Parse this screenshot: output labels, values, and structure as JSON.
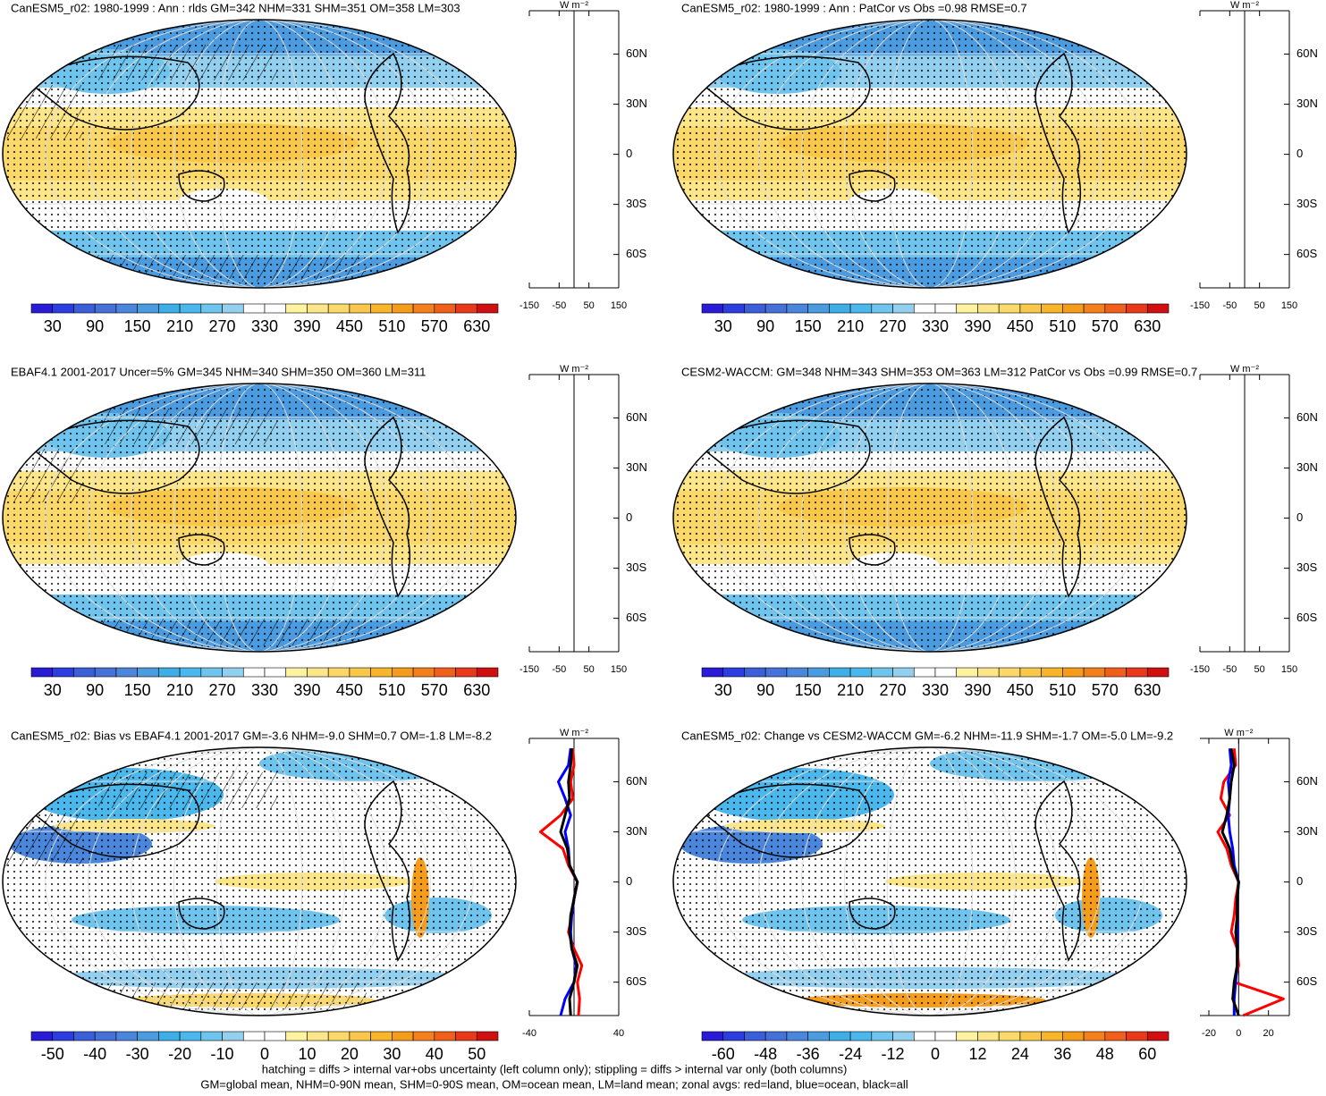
{
  "colorbar_colors": [
    "#2a1bd6",
    "#2d3ee0",
    "#3b5fd8",
    "#4571d8",
    "#4a86dc",
    "#4a9be0",
    "#3eaee6",
    "#4ab8ec",
    "#6fc4ee",
    "#93d0f0",
    "#ffffff",
    "#ffffff",
    "#fff3a0",
    "#fde68a",
    "#fbd86a",
    "#f9c84a",
    "#f7b52a",
    "#f59d1a",
    "#f3801a",
    "#f0601a",
    "#e83a1a",
    "#d01010"
  ],
  "panels": [
    {
      "title": "CanESM5_r02: 1980-1999 : Ann : rlds GM=342 NHM=331 SHM=351 OM=358 LM=303",
      "colorbar": [
        30,
        90,
        150,
        210,
        270,
        330,
        390,
        450,
        510,
        570,
        630
      ],
      "zonal": {
        "units": "W m⁻²",
        "xlim": [
          -150,
          150
        ],
        "xticks": [
          -150,
          -50,
          50,
          150
        ],
        "ylim": [
          -80,
          86
        ],
        "yticks": [
          {
            "value": 60,
            "label": "60N"
          },
          {
            "value": 30,
            "label": "30N"
          },
          0,
          {
            "value": -30,
            "label": "30S"
          },
          {
            "value": -60,
            "label": "60S"
          }
        ]
      }
    },
    {
      "title": "CanESM5_r02: 1980-1999 : Ann : PatCor vs Obs =0.98 RMSE=0.7",
      "colorbar": [
        30,
        90,
        150,
        210,
        270,
        330,
        390,
        450,
        510,
        570,
        630
      ],
      "zonal": {
        "units": "W m⁻²",
        "xlim": [
          -150,
          150
        ],
        "xticks": [
          -150,
          -50,
          50,
          150
        ],
        "ylim": [
          -80,
          86
        ],
        "yticks": [
          {
            "value": 60,
            "label": "60N"
          },
          {
            "value": 30,
            "label": "30N"
          },
          0,
          {
            "value": -30,
            "label": "30S"
          },
          {
            "value": -60,
            "label": "60S"
          }
        ]
      }
    },
    {
      "title": "EBAF4.1 2001-2017 Uncer=5% GM=345 NHM=340 SHM=350 OM=360 LM=311",
      "colorbar": [
        30,
        90,
        150,
        210,
        270,
        330,
        390,
        450,
        510,
        570,
        630
      ],
      "zonal": {
        "units": "W m⁻²",
        "xlim": [
          -150,
          150
        ],
        "xticks": [
          -150,
          -50,
          50,
          150
        ],
        "ylim": [
          -80,
          86
        ],
        "yticks": [
          {
            "value": 60,
            "label": "60N"
          },
          {
            "value": 30,
            "label": "30N"
          },
          0,
          {
            "value": -30,
            "label": "30S"
          },
          {
            "value": -60,
            "label": "60S"
          }
        ]
      }
    },
    {
      "title": "CESM2-WACCM: GM=348 NHM=343 SHM=353 OM=363 LM=312 PatCor vs Obs =0.99 RMSE=0.7",
      "colorbar": [
        30,
        90,
        150,
        210,
        270,
        330,
        390,
        450,
        510,
        570,
        630
      ],
      "zonal": {
        "units": "W m⁻²",
        "xlim": [
          -150,
          150
        ],
        "xticks": [
          -150,
          -50,
          50,
          150
        ],
        "ylim": [
          -80,
          86
        ],
        "yticks": [
          {
            "value": 60,
            "label": "60N"
          },
          {
            "value": 30,
            "label": "30N"
          },
          0,
          {
            "value": -30,
            "label": "30S"
          },
          {
            "value": -60,
            "label": "60S"
          }
        ]
      }
    },
    {
      "title": "CanESM5_r02: Bias vs EBAF4.1 2001-2017 GM=-3.6 NHM=-9.0 SHM=0.7 OM=-1.8 LM=-8.2",
      "colorbar": [
        -50,
        -40,
        -30,
        -20,
        -10,
        0,
        10,
        20,
        30,
        40,
        50
      ],
      "zonal": {
        "units": "W m⁻²",
        "xlim": [
          -40,
          40
        ],
        "xticks": [
          -40,
          40
        ],
        "ylim": [
          -80,
          86
        ],
        "yticks": [
          {
            "value": 60,
            "label": "60N"
          },
          {
            "value": 30,
            "label": "30N"
          },
          0,
          {
            "value": -30,
            "label": "30S"
          },
          {
            "value": -60,
            "label": "60S"
          }
        ],
        "lats": [
          80,
          70,
          60,
          50,
          40,
          30,
          20,
          10,
          0,
          -10,
          -20,
          -30,
          -40,
          -50,
          -60,
          -70,
          -80
        ],
        "series": [
          {
            "color": "#ff0000",
            "values": [
              -1,
              0,
              -3,
              -1,
              -12,
              -30,
              -10,
              -5,
              3,
              0,
              -2,
              -5,
              0,
              7,
              3,
              5,
              4
            ]
          },
          {
            "color": "#0000ff",
            "values": [
              -3,
              -5,
              -14,
              -8,
              -3,
              -8,
              -5,
              -4,
              3,
              0,
              -2,
              -3,
              -2,
              2,
              0,
              -8,
              -12
            ]
          },
          {
            "color": "#000000",
            "values": [
              -2,
              -3,
              -5,
              -4,
              -8,
              -12,
              -6,
              -4,
              3,
              0,
              -3,
              -4,
              -2,
              3,
              0,
              -4,
              -3
            ]
          }
        ]
      }
    },
    {
      "title": "CanESM5_r02: Change vs CESM2-WACCM GM=-6.2 NHM=-11.9 SHM=-1.7 OM=-5.0 LM=-9.2",
      "colorbar": [
        -60,
        -48,
        -36,
        -24,
        -12,
        0,
        12,
        24,
        36,
        48,
        60
      ],
      "zonal": {
        "units": "W m⁻²",
        "xlim": [
          -26,
          34
        ],
        "xticks": [
          -20,
          0,
          20
        ],
        "ylim": [
          -80,
          86
        ],
        "yticks": [
          {
            "value": 60,
            "label": "60N"
          },
          {
            "value": 30,
            "label": "30N"
          },
          0,
          {
            "value": -30,
            "label": "30S"
          },
          {
            "value": -60,
            "label": "60S"
          }
        ],
        "lats": [
          80,
          70,
          60,
          50,
          40,
          30,
          20,
          10,
          0,
          -10,
          -20,
          -30,
          -40,
          -50,
          -60,
          -70,
          -80
        ],
        "series": [
          {
            "color": "#ff0000",
            "values": [
              -3,
              -2,
              -10,
              -12,
              -6,
              -14,
              -8,
              -5,
              0,
              -2,
              -3,
              -5,
              -1,
              0,
              -3,
              30,
              3
            ]
          },
          {
            "color": "#0000ff",
            "values": [
              -6,
              -5,
              -7,
              -6,
              -7,
              -6,
              -4,
              -3,
              0,
              -1,
              -1,
              -1,
              -1,
              -1,
              -2,
              -3,
              -3
            ]
          },
          {
            "color": "#000000",
            "values": [
              -5,
              -3,
              -5,
              -6,
              -8,
              -11,
              -6,
              -4,
              0,
              -1,
              -1,
              -2,
              -1,
              -1,
              -3,
              -4,
              0
            ]
          }
        ]
      }
    }
  ],
  "footer": [
    "hatching = diffs > internal var+obs uncertainty (left column only); stippling = diffs > internal var only (both columns)",
    "GM=global mean, NHM=0-90N mean, SHM=0-90S mean, OM=ocean mean, LM=land mean; zonal avgs: red=land, blue=ocean, black=all"
  ]
}
